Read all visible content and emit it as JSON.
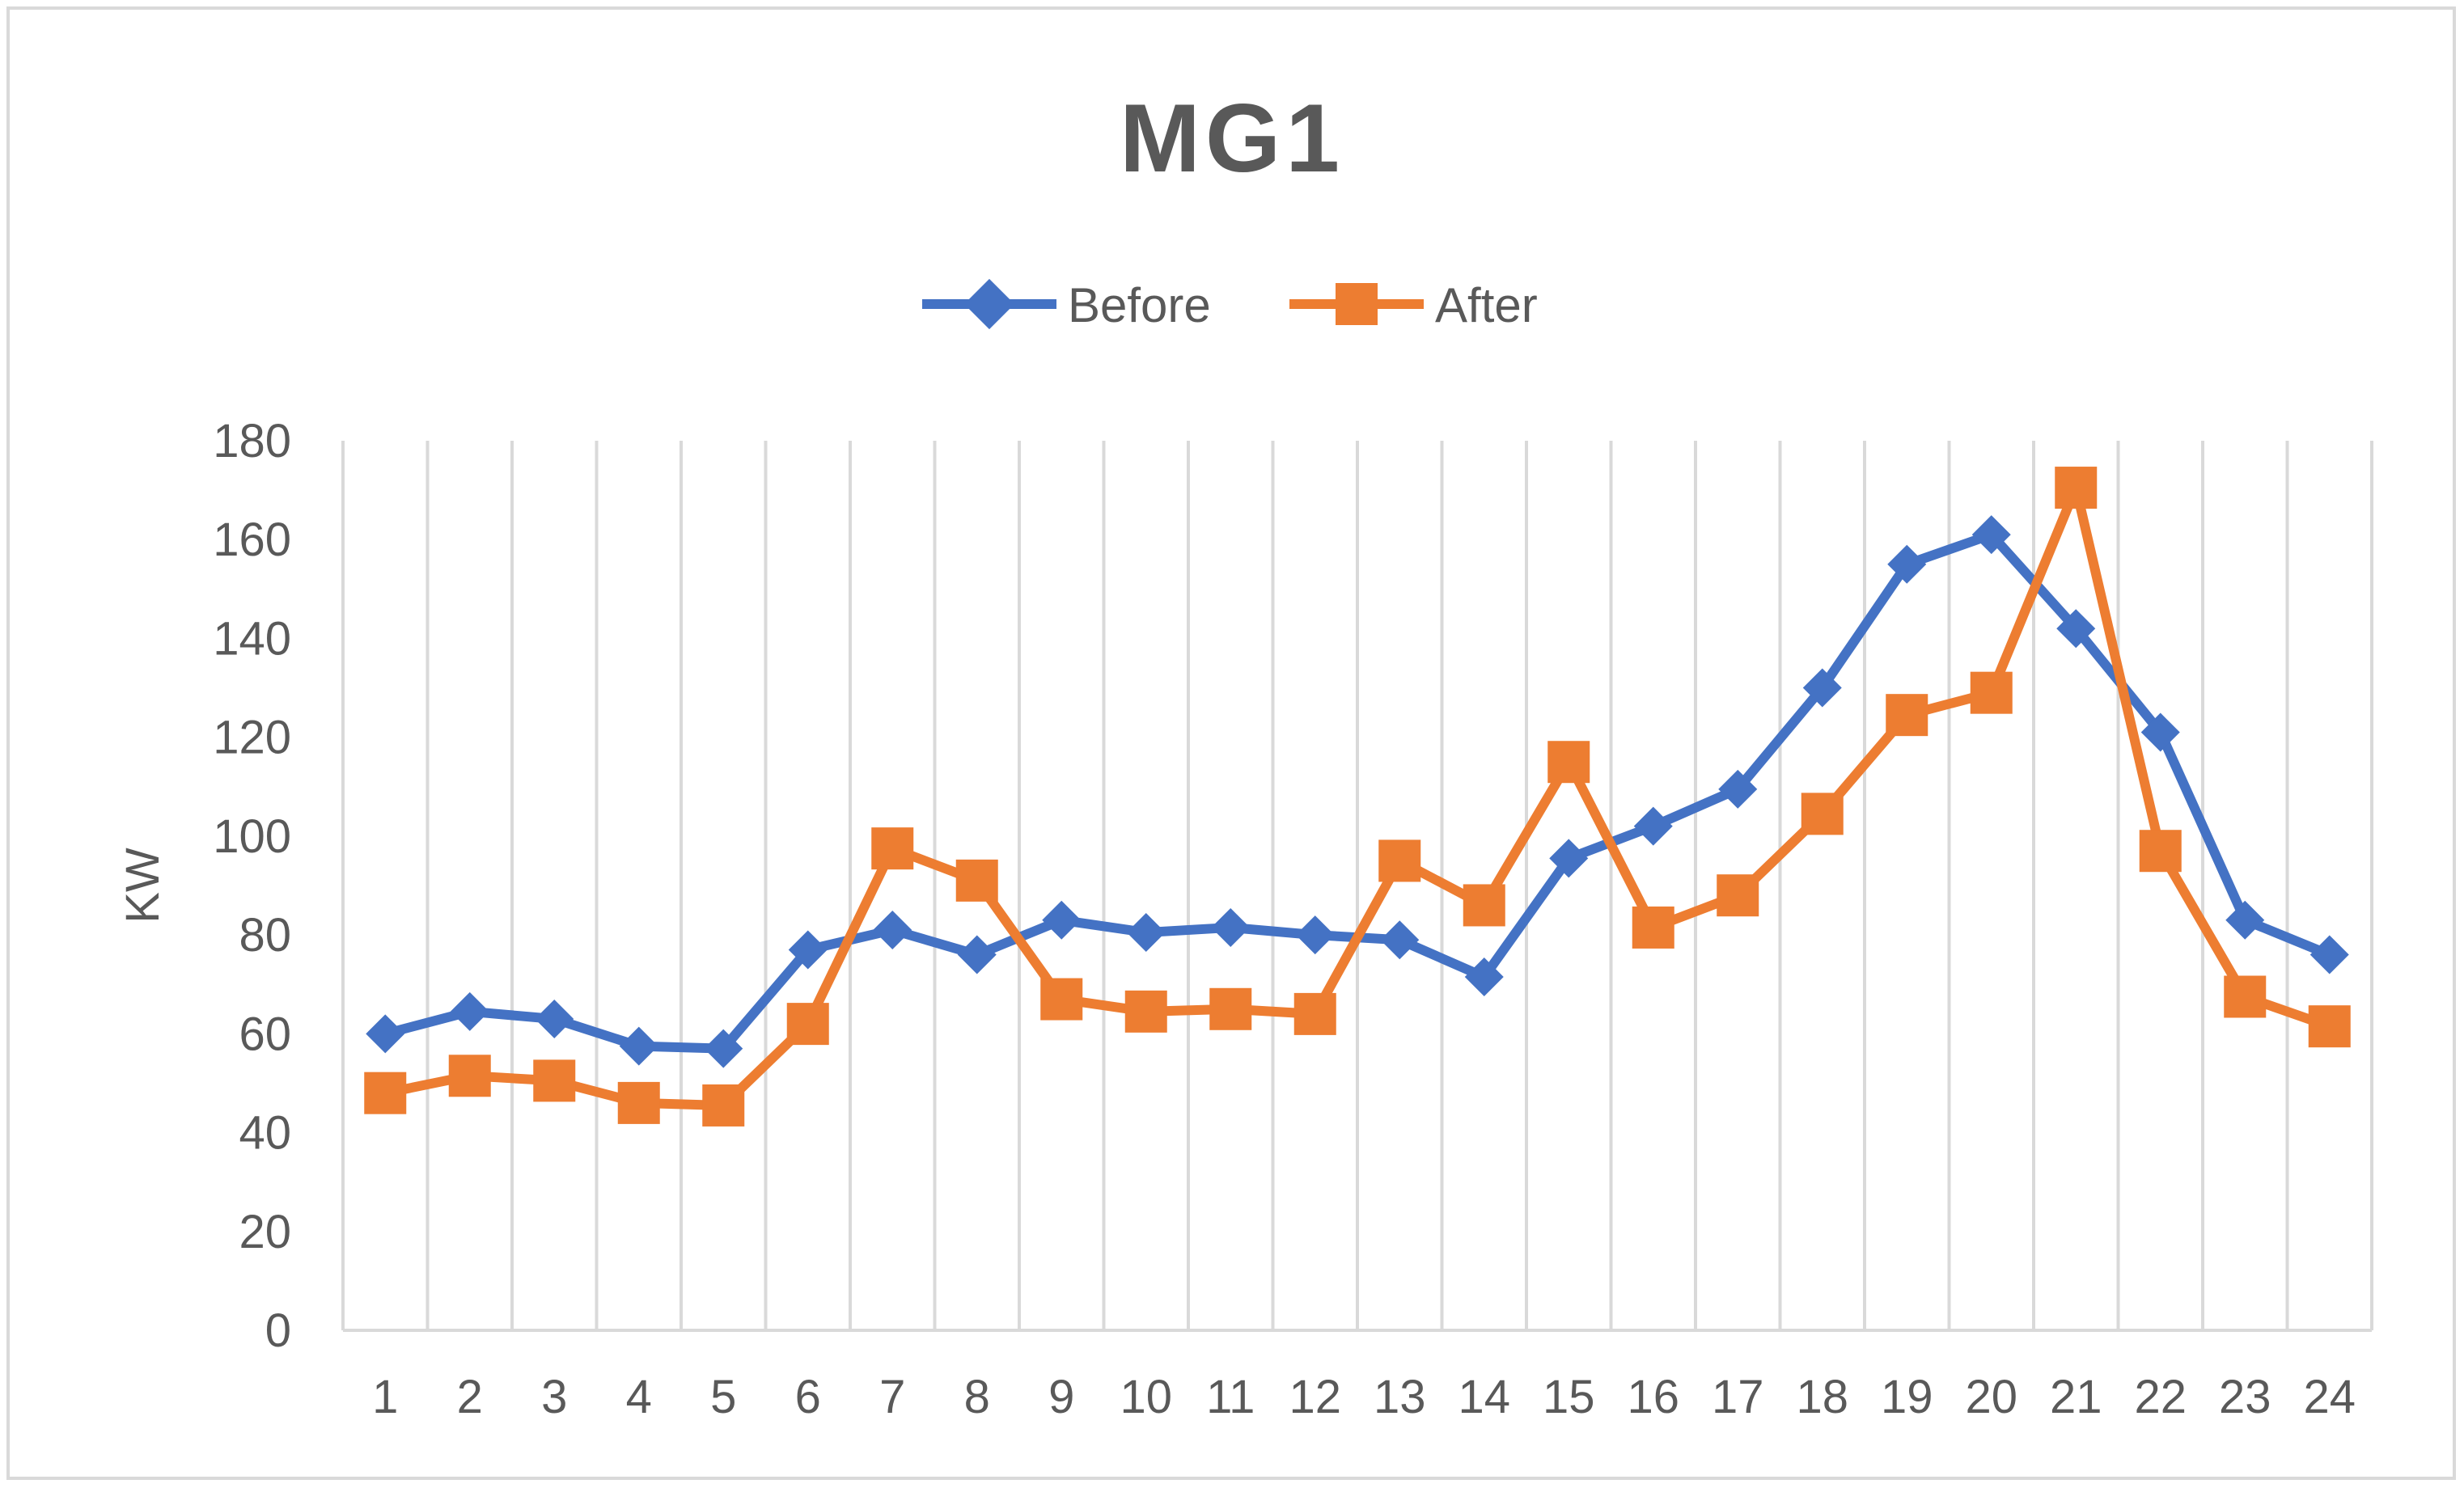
{
  "chart_data": {
    "type": "line",
    "title": "MG1",
    "xlabel": "",
    "ylabel": "KW",
    "ylim": [
      0,
      180
    ],
    "yticks": [
      0,
      20,
      40,
      60,
      80,
      100,
      120,
      140,
      160,
      180
    ],
    "categories": [
      "1",
      "2",
      "3",
      "4",
      "5",
      "6",
      "7",
      "8",
      "9",
      "10",
      "11",
      "12",
      "13",
      "14",
      "15",
      "16",
      "17",
      "18",
      "19",
      "20",
      "21",
      "22",
      "23",
      "24"
    ],
    "grid": "vertical",
    "legend_position": "top",
    "series": [
      {
        "name": "Before",
        "color": "#4472c4",
        "marker": "diamond",
        "values": [
          60,
          64.5,
          63,
          57.5,
          57,
          77,
          81,
          76,
          83,
          80.5,
          81.5,
          80,
          79,
          71.5,
          95.5,
          102,
          109.5,
          130,
          155,
          161,
          142,
          121,
          83,
          76
        ]
      },
      {
        "name": "After",
        "color": "#ed7d31",
        "marker": "square",
        "values": [
          48,
          51.5,
          50.5,
          46,
          45.5,
          62,
          97.5,
          91,
          67,
          64.5,
          65,
          64,
          95,
          86,
          115,
          81.5,
          88,
          104.5,
          124.5,
          129,
          170.5,
          97,
          67.5,
          61.5
        ]
      }
    ]
  }
}
